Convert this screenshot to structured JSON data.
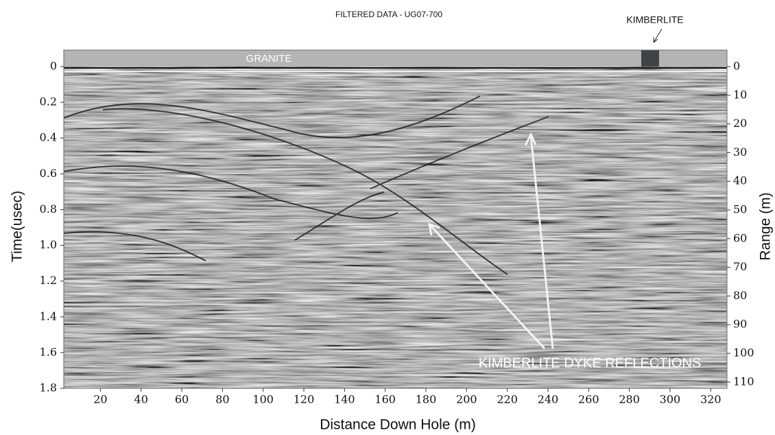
{
  "chart_data": {
    "type": "radargram",
    "title": "FILTERED DATA - UG07-700",
    "x_label": "Distance Down Hole (m)",
    "y_label": "Time(usec)",
    "y2_label": "Range (m)",
    "annotations": [
      "GRANITE",
      "KIMBERLITE",
      "KIMBERLITE DYKE REFLECTIONS"
    ],
    "xlim": [
      2,
      328
    ],
    "xticks": [
      20,
      40,
      60,
      80,
      100,
      120,
      140,
      160,
      180,
      200,
      220,
      240,
      260,
      280,
      300,
      320
    ],
    "ylim": [
      0,
      1.8
    ],
    "yticks": [
      0,
      0.2,
      0.4,
      0.6,
      0.8,
      {
        "value": 1.0,
        "label": "1.0"
      },
      1.2,
      1.4,
      1.6,
      1.8
    ],
    "y2lim": [
      0,
      112.2
    ],
    "y2ticks": [
      0,
      10,
      20,
      30,
      40,
      50,
      60,
      70,
      80,
      90,
      100,
      110
    ]
  }
}
